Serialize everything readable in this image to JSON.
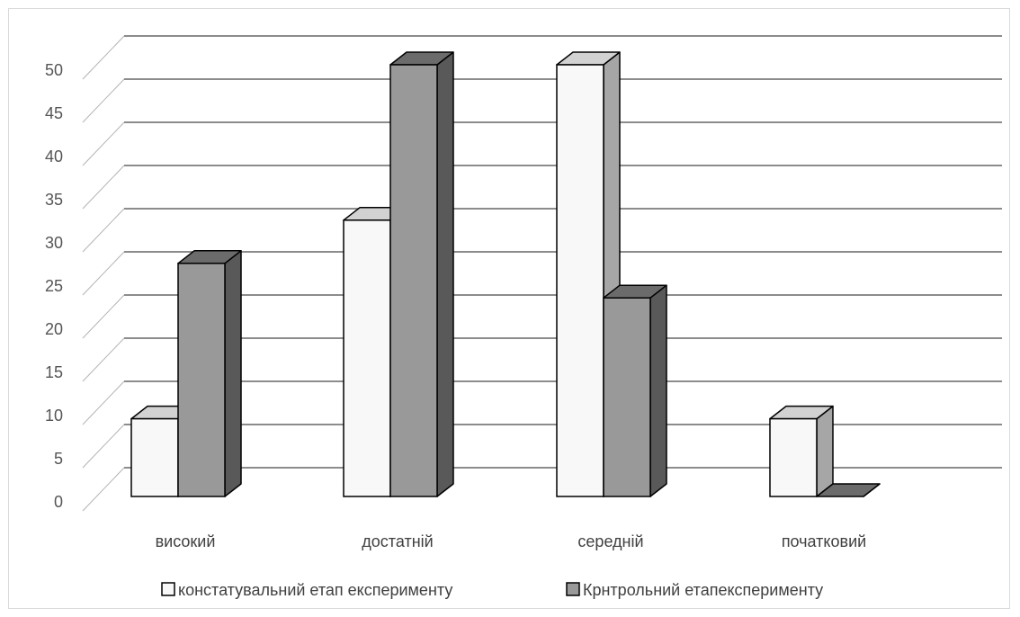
{
  "chart_data": {
    "type": "bar",
    "style": "3d-clustered-column",
    "categories": [
      "високий",
      "достатній",
      "середній",
      "початковий"
    ],
    "series": [
      {
        "name": "констатувальний етап експерименту",
        "values": [
          9,
          32,
          50,
          9
        ],
        "color": "#f8f8f8"
      },
      {
        "name": "Крнтрольний етапексперименту",
        "values": [
          27,
          50,
          23,
          0
        ],
        "color": "#999999"
      }
    ],
    "yticks": [
      "0",
      "5",
      "10",
      "15",
      "20",
      "25",
      "30",
      "35",
      "40",
      "45",
      "50"
    ],
    "ylim": [
      0,
      50
    ],
    "grid": true,
    "legend": "bottom"
  }
}
